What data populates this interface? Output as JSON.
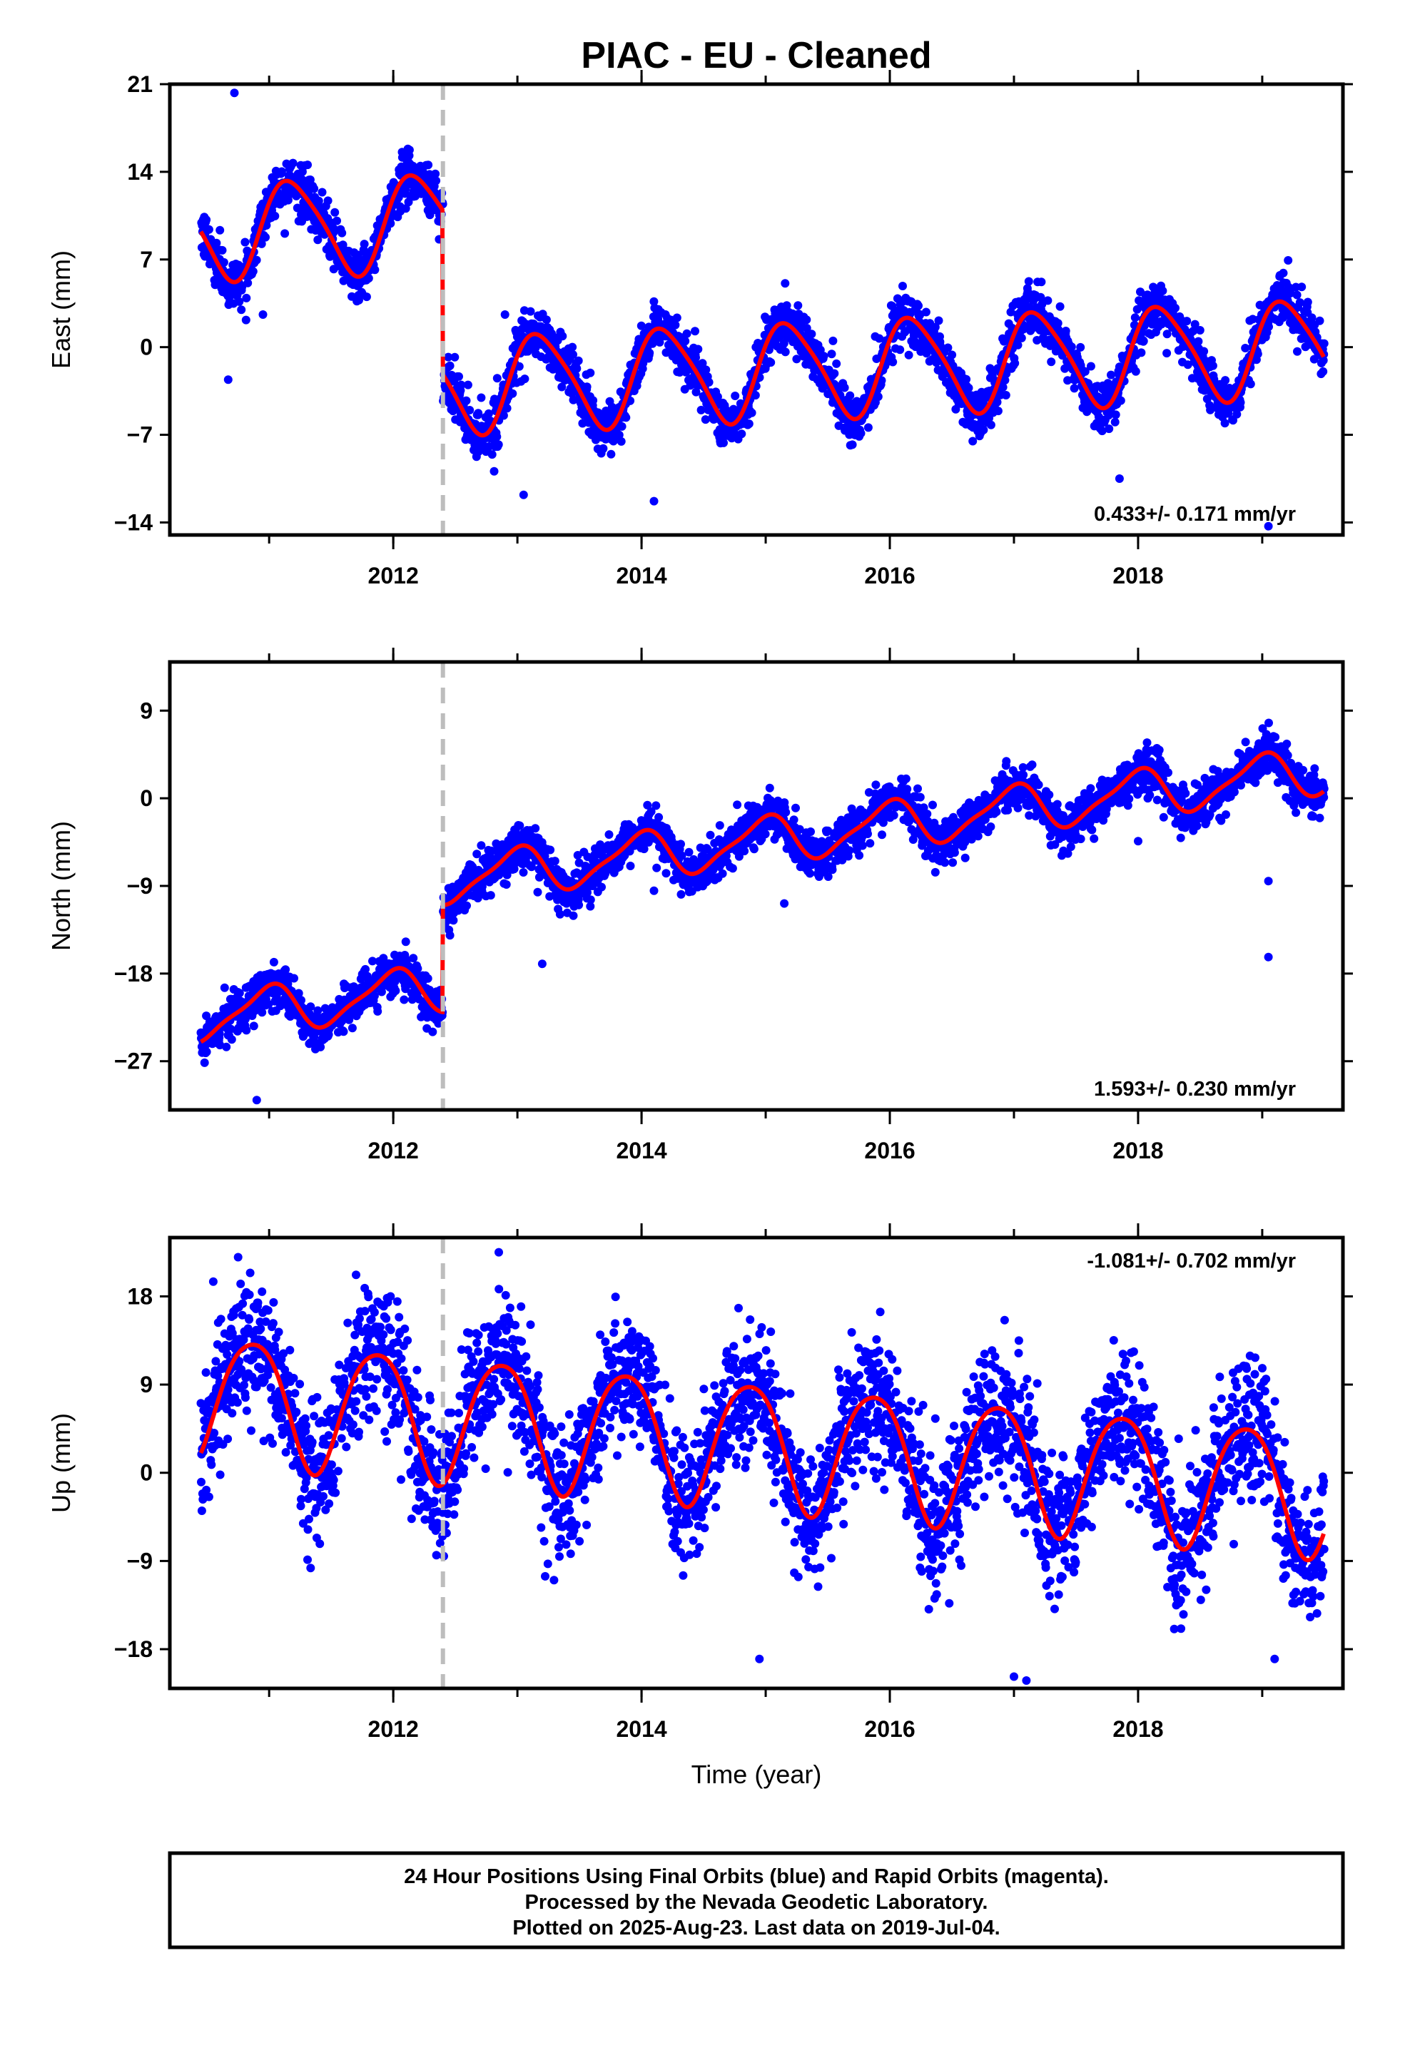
{
  "title": "PIAC  - EU - Cleaned",
  "colors": {
    "points": "#0000ff",
    "fit": "#ff0000",
    "offset_line": "#bdbdbd",
    "frame": "#000000"
  },
  "caption": {
    "line1": "24 Hour Positions Using Final Orbits (blue) and Rapid Orbits (magenta).",
    "line2": "Processed by the Nevada Geodetic Laboratory.",
    "line3": "Plotted on 2025-Aug-23. Last data on 2019-Jul-04."
  },
  "chart_data": [
    {
      "type": "scatter",
      "id": "east",
      "ylabel": "East (mm)",
      "xlabel": "",
      "xlim": [
        2010.2,
        2019.65
      ],
      "ylim": [
        -15,
        21
      ],
      "yticks": [
        -14,
        -7,
        0,
        7,
        14,
        21
      ],
      "xticks": [
        2012,
        2014,
        2016,
        2018
      ],
      "rate": "0.433+/- 0.171 mm/yr",
      "rate_position": "bottom-right",
      "offset_epoch": 2012.4,
      "fit": {
        "offset_before": 11.2,
        "offset_after": -1.9,
        "trend": 0.433,
        "amp1": 3.8,
        "phase1": 0.4,
        "amp2": 0.6,
        "phase2": 1.2,
        "ref_epoch": 2015
      },
      "noise_sd": 1.0,
      "outliers": [
        [
          2010.72,
          20.3
        ],
        [
          2010.95,
          2.6
        ],
        [
          2010.67,
          -2.6
        ],
        [
          2012.9,
          2.6
        ],
        [
          2013.05,
          -11.8
        ],
        [
          2014.1,
          -12.3
        ],
        [
          2017.85,
          -10.5
        ],
        [
          2019.05,
          -14.3
        ]
      ]
    },
    {
      "type": "scatter",
      "id": "north",
      "ylabel": "North (mm)",
      "xlabel": "",
      "xlim": [
        2010.2,
        2019.65
      ],
      "ylim": [
        -32,
        14
      ],
      "yticks": [
        -27,
        -18,
        -9,
        0,
        9
      ],
      "xticks": [
        2012,
        2014,
        2016,
        2018
      ],
      "rate": "1.593+/- 0.230 mm/yr",
      "rate_position": "bottom-right",
      "offset_epoch": 2012.4,
      "fit": {
        "offset_before": -15.3,
        "offset_after": -4.3,
        "trend": 1.593,
        "amp1": 2.3,
        "phase1": 1.7,
        "amp2": 0.6,
        "phase2": 0.3,
        "ref_epoch": 2015
      },
      "noise_sd": 1.1,
      "outliers": [
        [
          2010.9,
          -31.0
        ],
        [
          2013.2,
          -17.0
        ],
        [
          2014.1,
          -9.5
        ],
        [
          2015.15,
          -10.8
        ],
        [
          2018.0,
          -4.4
        ],
        [
          2019.05,
          -8.5
        ],
        [
          2019.05,
          -16.3
        ]
      ]
    },
    {
      "type": "scatter",
      "id": "up",
      "ylabel": "Up (mm)",
      "xlabel": "Time (year)",
      "xlim": [
        2010.2,
        2019.65
      ],
      "ylim": [
        -22,
        24
      ],
      "yticks": [
        -18,
        -9,
        0,
        9,
        18
      ],
      "xticks": [
        2012,
        2014,
        2016,
        2018
      ],
      "rate": "-1.081+/- 0.702 mm/yr",
      "rate_position": "top-right",
      "offset_epoch": 2012.4,
      "fit": {
        "offset_before": 3.0,
        "offset_after": 3.0,
        "trend": -1.081,
        "amp1": 6.4,
        "phase1": 2.4,
        "amp2": 0.8,
        "phase2": 0.2,
        "ref_epoch": 2015
      },
      "noise_sd": 3.4,
      "outliers": [
        [
          2010.75,
          22.0
        ],
        [
          2012.85,
          22.5
        ],
        [
          2010.55,
          19.5
        ],
        [
          2011.7,
          20.2
        ],
        [
          2017.0,
          -20.8
        ],
        [
          2017.1,
          -21.2
        ],
        [
          2014.95,
          -19.0
        ],
        [
          2019.1,
          -19.0
        ]
      ]
    }
  ]
}
